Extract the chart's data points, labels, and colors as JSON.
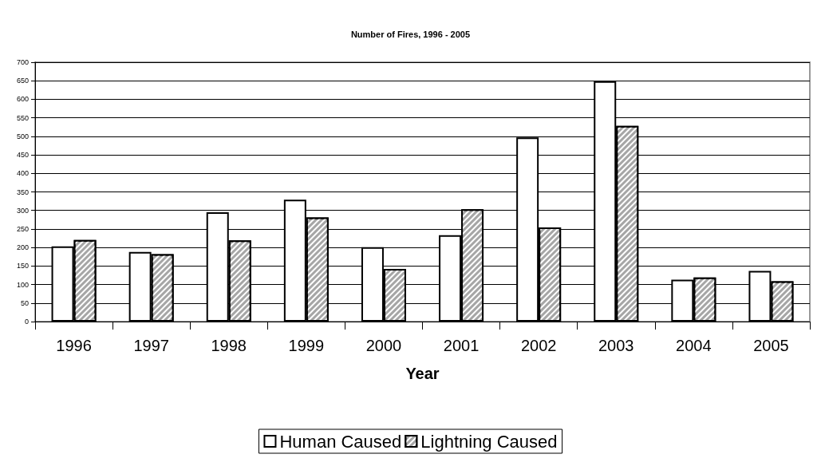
{
  "chart_data": {
    "type": "bar",
    "title": "Number of Fires, 1996 - 2005",
    "xlabel": "Year",
    "categories": [
      "1996",
      "1997",
      "1998",
      "1999",
      "2000",
      "2001",
      "2002",
      "2003",
      "2004",
      "2005"
    ],
    "series": [
      {
        "name": "Human Caused",
        "color": "#ffffff",
        "values": [
          203,
          188,
          295,
          329,
          201,
          233,
          497,
          649,
          113,
          137
        ]
      },
      {
        "name": "Lightning Caused",
        "color": "#a6a6a6",
        "values": [
          220,
          182,
          219,
          281,
          142,
          303,
          254,
          528,
          119,
          109
        ]
      }
    ],
    "ylim": [
      0,
      700
    ],
    "yticks": [
      0,
      50,
      100,
      150,
      200,
      250,
      300,
      350,
      400,
      450,
      500,
      550,
      600,
      650,
      700
    ],
    "grid": "y",
    "legend": "bottom"
  }
}
